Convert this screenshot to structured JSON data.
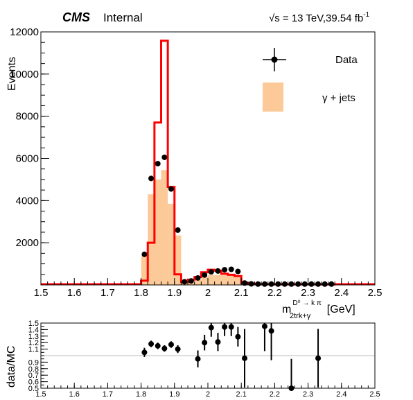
{
  "header": {
    "experiment": "CMS",
    "status": "Internal",
    "energy_lumi": "√s = 13 TeV,39.54 fb",
    "lumi_exponent": "-1"
  },
  "legend": {
    "data_label": "Data",
    "mc_label": "γ + jets"
  },
  "colors": {
    "mc_fill": "#fcca99",
    "mc_line": "#ff0000",
    "data": "#000000",
    "unity_line": "#bbbbbb"
  },
  "chart_data": [
    {
      "type": "bar",
      "panel": "main",
      "ylabel": "Events",
      "xlabel_main": "m",
      "xlabel_sup": "D⁰ → k π",
      "xlabel_sub": "2trk+γ",
      "xlabel_unit": "[GeV]",
      "xlim": [
        1.5,
        2.5
      ],
      "ylim": [
        0,
        12000
      ],
      "xticks": [
        1.5,
        1.6,
        1.7,
        1.8,
        1.9,
        2.0,
        2.1,
        2.2,
        2.3,
        2.4,
        2.5
      ],
      "xtick_labels": [
        "1.5",
        "1.6",
        "1.7",
        "1.8",
        "1.9",
        "2",
        "2.1",
        "2.2",
        "2.3",
        "2.4",
        "2.5"
      ],
      "yticks": [
        2000,
        4000,
        6000,
        8000,
        10000,
        12000
      ],
      "ytick_labels": [
        "2000",
        "4000",
        "6000",
        "8000",
        "10000",
        "12000"
      ],
      "bin_width": 0.02,
      "x": [
        1.81,
        1.83,
        1.85,
        1.87,
        1.89,
        1.91,
        1.93,
        1.95,
        1.97,
        1.99,
        2.01,
        2.03,
        2.05,
        2.07,
        2.09,
        2.11,
        2.13,
        2.15,
        2.17,
        2.19,
        2.21,
        2.23,
        2.25,
        2.27,
        2.29,
        2.31,
        2.33,
        2.35,
        2.37
      ],
      "series": [
        {
          "name": "γ + jets",
          "style": "filled",
          "values": [
            1350,
            4300,
            5000,
            5450,
            3850,
            2350,
            130,
            130,
            250,
            400,
            470,
            470,
            470,
            430,
            370,
            80,
            60,
            40,
            30,
            30,
            25,
            25,
            25,
            25,
            25,
            25,
            25,
            25,
            25
          ]
        },
        {
          "name": "",
          "style": "line",
          "values": [
            200,
            2000,
            7700,
            11580,
            4650,
            500,
            130,
            250,
            380,
            600,
            720,
            680,
            530,
            480,
            420,
            100,
            60,
            40,
            30,
            30,
            25,
            25,
            25,
            25,
            25,
            25,
            25,
            25,
            25
          ]
        },
        {
          "name": "Data",
          "style": "points",
          "values": [
            1450,
            5050,
            5750,
            6050,
            4550,
            2600,
            150,
            190,
            330,
            470,
            620,
            660,
            720,
            740,
            640,
            90,
            50,
            40,
            40,
            40,
            40,
            40,
            40,
            40,
            40,
            40,
            40,
            40,
            40
          ]
        }
      ]
    },
    {
      "type": "scatter",
      "panel": "ratio",
      "ylabel": "data/MC",
      "xlim": [
        1.5,
        2.5
      ],
      "ylim": [
        0.5,
        1.5
      ],
      "xticks": [
        1.5,
        1.6,
        1.7,
        1.8,
        1.9,
        2.0,
        2.1,
        2.2,
        2.3,
        2.4,
        2.5
      ],
      "xtick_labels": [
        "1.5",
        "1.6",
        "1.7",
        "1.8",
        "1.9",
        "2",
        "2.1",
        "2.2",
        "2.3",
        "2.4",
        "2.5"
      ],
      "yticks": [
        0.5,
        0.6,
        0.7,
        0.8,
        0.9,
        1.1,
        1.2,
        1.3,
        1.4,
        1.5
      ],
      "ytick_labels": [
        "0.5",
        "0.6",
        "0.7",
        "0.8",
        "0.9",
        "1.1",
        "1.2",
        "1.3",
        "1.4",
        "1.5"
      ],
      "points": [
        {
          "x": 1.81,
          "y": 1.05,
          "err": 0.07
        },
        {
          "x": 1.83,
          "y": 1.18,
          "err": 0.05
        },
        {
          "x": 1.85,
          "y": 1.15,
          "err": 0.05
        },
        {
          "x": 1.87,
          "y": 1.11,
          "err": 0.05
        },
        {
          "x": 1.89,
          "y": 1.17,
          "err": 0.05
        },
        {
          "x": 1.91,
          "y": 1.1,
          "err": 0.06
        },
        {
          "x": 1.97,
          "y": 0.95,
          "err": 0.13
        },
        {
          "x": 1.99,
          "y": 1.2,
          "err": 0.12
        },
        {
          "x": 2.01,
          "y": 1.43,
          "err": 0.14
        },
        {
          "x": 2.03,
          "y": 1.21,
          "err": 0.14
        },
        {
          "x": 2.05,
          "y": 1.44,
          "err": 0.14
        },
        {
          "x": 2.07,
          "y": 1.44,
          "err": 0.14
        },
        {
          "x": 2.09,
          "y": 1.29,
          "err": 0.15
        },
        {
          "x": 2.11,
          "y": 0.96,
          "err": 0.45
        },
        {
          "x": 2.17,
          "y": 1.45,
          "err": 0.38
        },
        {
          "x": 2.19,
          "y": 1.38,
          "err": 0.45
        },
        {
          "x": 2.25,
          "y": 0.5,
          "err": 0.45
        },
        {
          "x": 2.33,
          "y": 0.96,
          "err": 0.45
        }
      ]
    }
  ]
}
